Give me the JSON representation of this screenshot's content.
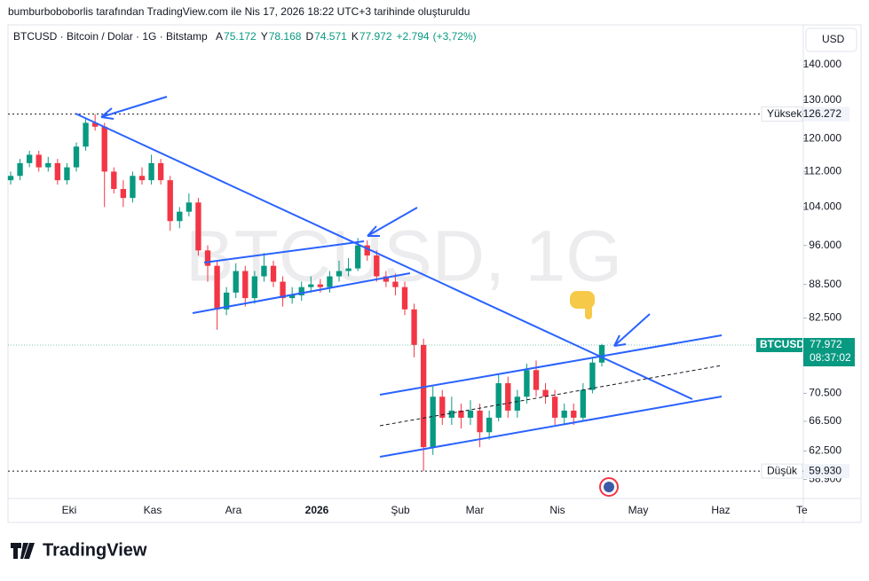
{
  "header": {
    "attribution": "bumburboboborlis tarafından TradingView.com ile Nis 17, 2026 18:22 UTC+3 tarihinde oluşturuldu"
  },
  "chart_data": {
    "type": "candlestick",
    "title": "BTCUSD · Bitcoin / Dolar · 1G · Bitstamp",
    "ohlc_legend": [
      {
        "prefix": "A",
        "value": 75172,
        "label": "75.172"
      },
      {
        "prefix": "Y",
        "value": 78168,
        "label": "78.168"
      },
      {
        "prefix": "D",
        "value": 74571,
        "label": "74.571"
      },
      {
        "prefix": "K",
        "value": 77972,
        "label": "77.972"
      }
    ],
    "change": {
      "value": 2794,
      "label": "+2.794"
    },
    "change_percent": {
      "value": 3.72,
      "label": "(+3,72%)"
    },
    "watermark": "BTCUSD, 1G",
    "currency": "USD",
    "log_scale": true,
    "up_color": "#089981",
    "down_color": "#f23645",
    "ylim": [
      56600,
      148800
    ],
    "yticks": [
      {
        "value": 140000,
        "label": "140.000"
      },
      {
        "value": 130000,
        "label": "130.000"
      },
      {
        "value": 120000,
        "label": "120.000"
      },
      {
        "value": 112000,
        "label": "112.000"
      },
      {
        "value": 104000,
        "label": "104.000"
      },
      {
        "value": 96000,
        "label": "96.000"
      },
      {
        "value": 88500,
        "label": "88.500"
      },
      {
        "value": 82500,
        "label": "82.500"
      },
      {
        "value": 70500,
        "label": "70.500"
      },
      {
        "value": 66500,
        "label": "66.500"
      },
      {
        "value": 62500,
        "label": "62.500"
      },
      {
        "value": 58900,
        "label": "58.900"
      }
    ],
    "x_labels": [
      "Eki",
      "Kas",
      "Ara",
      "2026",
      "Şub",
      "Mar",
      "Nis",
      "May",
      "Haz",
      "Te"
    ],
    "high": {
      "name": "Yüksek",
      "value": 126272,
      "label": "126.272"
    },
    "low": {
      "name": "Düşük",
      "value": 59930,
      "label": "59.930"
    },
    "last": {
      "name": "BTCUSD",
      "value": 77972,
      "label": "77.972",
      "countdown": "08:37:02"
    },
    "candles": [
      [
        110000,
        112000,
        109000,
        111000
      ],
      [
        111000,
        115000,
        110000,
        114000
      ],
      [
        114000,
        117000,
        113000,
        116000
      ],
      [
        116000,
        117000,
        112000,
        113000
      ],
      [
        113000,
        115500,
        112000,
        114000
      ],
      [
        114000,
        115000,
        109000,
        110000
      ],
      [
        110000,
        114000,
        109000,
        113000
      ],
      [
        113000,
        119000,
        112000,
        118000
      ],
      [
        118000,
        125000,
        117000,
        124000
      ],
      [
        124000,
        126272,
        122000,
        123000
      ],
      [
        123000,
        124000,
        104000,
        112000
      ],
      [
        112000,
        113000,
        107000,
        108000
      ],
      [
        108000,
        110000,
        104000,
        106000
      ],
      [
        106000,
        112000,
        105000,
        111000
      ],
      [
        111000,
        113000,
        109000,
        110000
      ],
      [
        110000,
        116000,
        109000,
        114000
      ],
      [
        114000,
        115000,
        109000,
        110000
      ],
      [
        110000,
        111000,
        99000,
        101000
      ],
      [
        101000,
        104000,
        99500,
        103000
      ],
      [
        103000,
        107000,
        102000,
        105000
      ],
      [
        105000,
        106000,
        94000,
        95000
      ],
      [
        95000,
        96000,
        89000,
        92000
      ],
      [
        92000,
        93000,
        80500,
        84000
      ],
      [
        84000,
        88000,
        83000,
        87000
      ],
      [
        87000,
        92500,
        86000,
        91000
      ],
      [
        91000,
        92000,
        84500,
        86000
      ],
      [
        86000,
        91000,
        85000,
        90000
      ],
      [
        90000,
        94500,
        89000,
        92000
      ],
      [
        92000,
        93000,
        88000,
        89000
      ],
      [
        89000,
        90000,
        84500,
        86000
      ],
      [
        86000,
        88000,
        85000,
        86500
      ],
      [
        86500,
        89000,
        85500,
        88000
      ],
      [
        88000,
        90000,
        87000,
        88500
      ],
      [
        88500,
        89500,
        87000,
        88000
      ],
      [
        88000,
        91000,
        87000,
        90000
      ],
      [
        90000,
        93000,
        89000,
        91000
      ],
      [
        91000,
        93500,
        90000,
        91500
      ],
      [
        91500,
        97500,
        91000,
        96000
      ],
      [
        96000,
        97000,
        93000,
        94000
      ],
      [
        94000,
        95000,
        89000,
        90000
      ],
      [
        90000,
        91000,
        88000,
        89000
      ],
      [
        89000,
        90500,
        86500,
        88000
      ],
      [
        88000,
        89000,
        83000,
        84000
      ],
      [
        84000,
        85000,
        76000,
        78000
      ],
      [
        78000,
        79000,
        59930,
        63000
      ],
      [
        63000,
        71500,
        62000,
        70000
      ],
      [
        70000,
        71000,
        66000,
        67000
      ],
      [
        67000,
        70000,
        66000,
        68000
      ],
      [
        68000,
        69000,
        65500,
        67000
      ],
      [
        67000,
        69500,
        66000,
        68000
      ],
      [
        68000,
        69000,
        63000,
        65000
      ],
      [
        65000,
        68000,
        64000,
        67000
      ],
      [
        67000,
        73500,
        66500,
        72000
      ],
      [
        72000,
        73000,
        67000,
        68000
      ],
      [
        68000,
        71000,
        67000,
        70000
      ],
      [
        70000,
        75000,
        69000,
        74000
      ],
      [
        74000,
        75500,
        70000,
        71000
      ],
      [
        71000,
        72000,
        69000,
        70000
      ],
      [
        70000,
        71000,
        66000,
        67000
      ],
      [
        67000,
        69000,
        66000,
        68000
      ],
      [
        68000,
        69000,
        66000,
        67000
      ],
      [
        67000,
        72000,
        66500,
        71000
      ],
      [
        71000,
        76000,
        70500,
        75172
      ],
      [
        75172,
        78168,
        74571,
        77972
      ]
    ]
  }
}
